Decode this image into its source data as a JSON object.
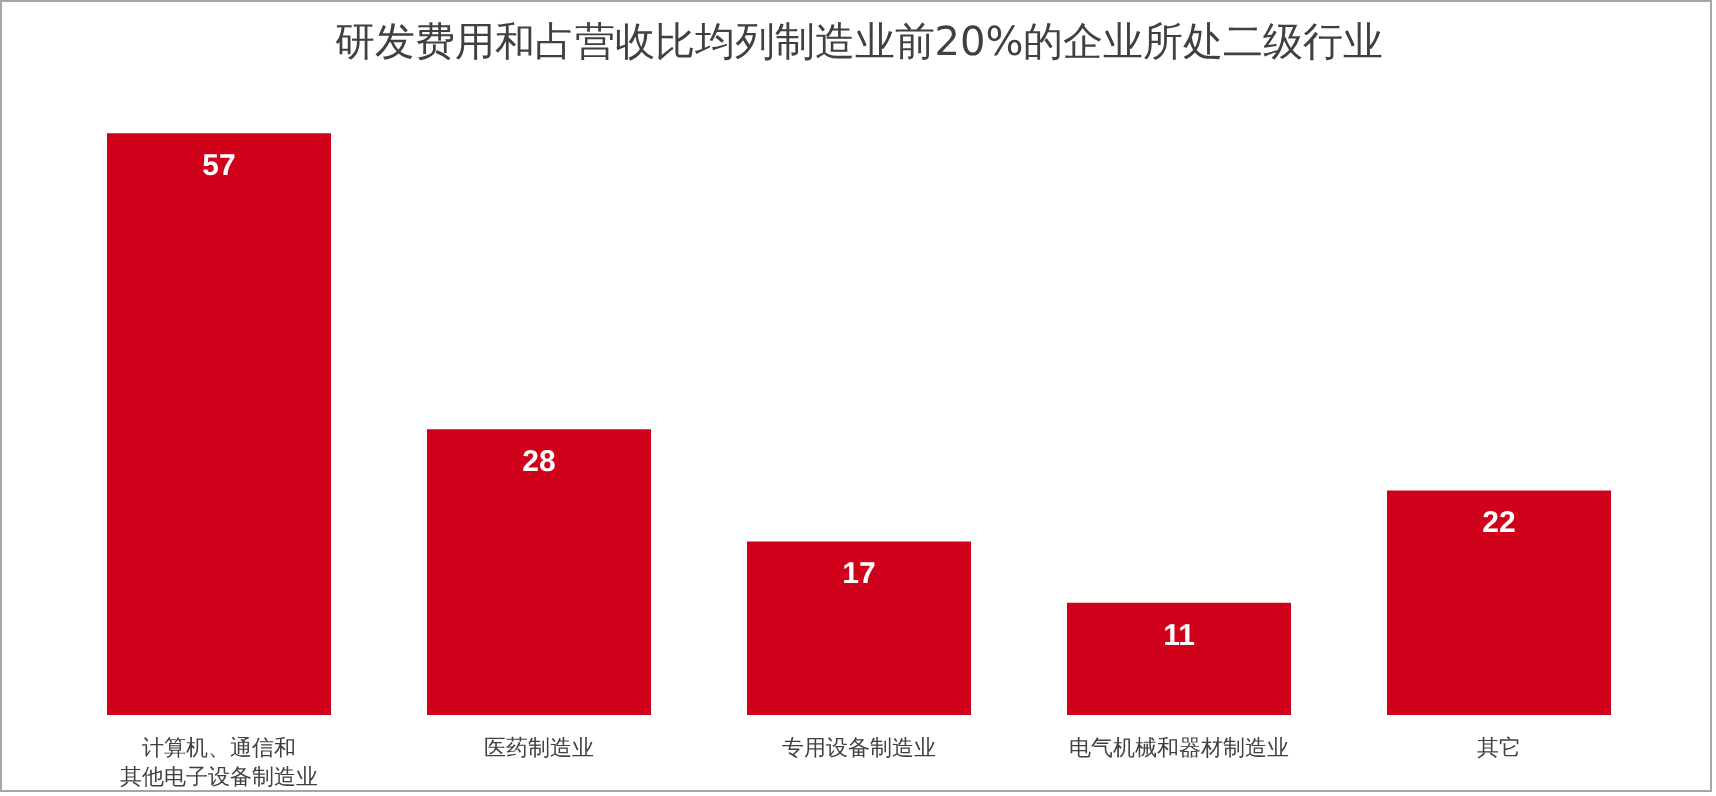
{
  "chart_data": {
    "type": "bar",
    "title": "研发费用和占营收比均列制造业前20%的企业所处二级行业",
    "categories": [
      "计算机、通信和其他电子设备制造业",
      "医药制造业",
      "专用设备制造业",
      "电气机械和器材制造业",
      "其它"
    ],
    "values": [
      57,
      28,
      17,
      11,
      22
    ],
    "color": "#d0021b",
    "data_labels": true
  }
}
